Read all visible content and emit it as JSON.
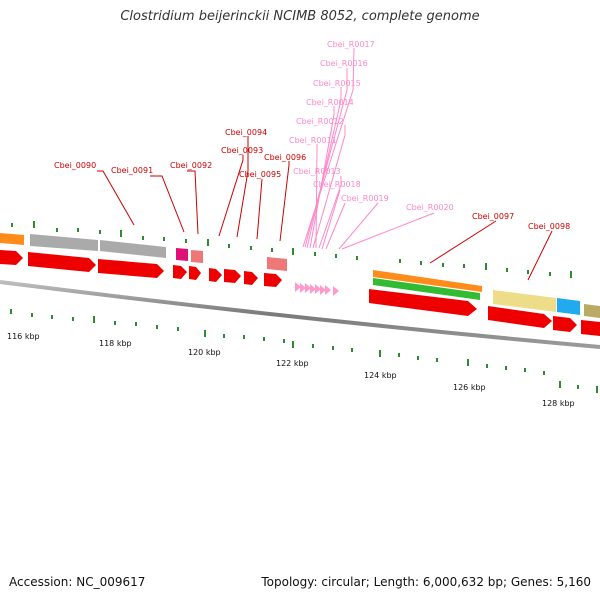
{
  "title": "Clostridium beijerinckii NCIMB 8052, complete genome",
  "accession": "Accession: NC_009617",
  "topology": "Topology: circular; Length: 6,000,632 bp; Genes: 5,160",
  "colors": {
    "backbone": "#7a7a7a",
    "tick": "#2e8b2e",
    "gene_label": "#cc0000",
    "rna_label": "#ff88c8",
    "cds": "#ee0000",
    "rrna": "#ff9acb",
    "orange": "#ff8c1a",
    "green": "#33bb33",
    "grey": "#aaaaaa",
    "magenta": "#dd1177",
    "salmon": "#ee7777",
    "khaki": "#eedd88",
    "cyan": "#22aaee",
    "olive": "#bbaa66"
  },
  "scale_labels": [
    "116 kbp",
    "118 kbp",
    "120 kbp",
    "122 kbp",
    "124 kbp",
    "126 kbp",
    "128 kbp"
  ],
  "gene_labels": [
    "Cbei_0090",
    "Cbei_0091",
    "Cbei_0092",
    "Cbei_0093",
    "Cbei_0094",
    "Cbei_0095",
    "Cbei_0096",
    "Cbei_0097",
    "Cbei_0098"
  ],
  "rna_labels": [
    "Cbei_R0017",
    "Cbei_R0016",
    "Cbei_R0015",
    "Cbei_R0014",
    "Cbei_R0012",
    "Cbei_R0011",
    "Cbei_R0013",
    "Cbei_R0018",
    "Cbei_R0019",
    "Cbei_R0020"
  ]
}
